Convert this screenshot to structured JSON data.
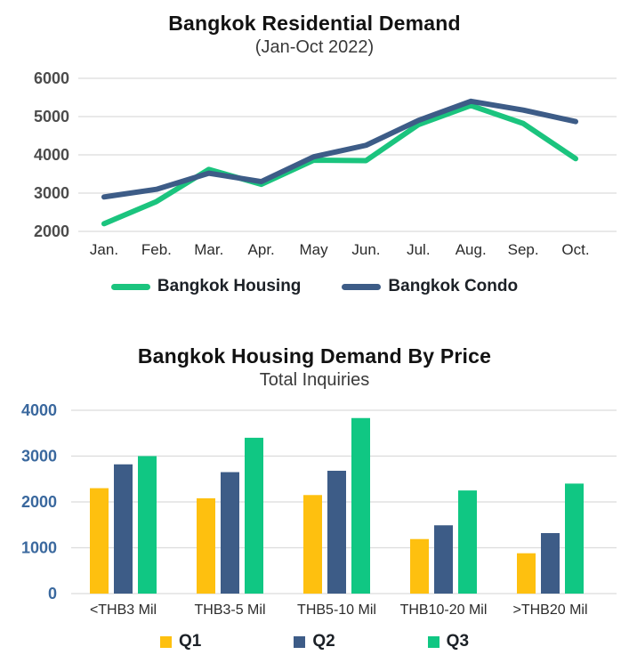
{
  "chart_data": [
    {
      "type": "line",
      "title": "Bangkok Residential Demand",
      "subtitle": "(Jan-Oct 2022)",
      "x": [
        "Jan.",
        "Feb.",
        "Mar.",
        "Apr.",
        "May",
        "Jun.",
        "Jul.",
        "Aug.",
        "Sep.",
        "Oct."
      ],
      "series": [
        {
          "name": "Bangkok Housing",
          "color": "#1BC47E",
          "values": [
            2200,
            2780,
            3620,
            3230,
            3860,
            3850,
            4790,
            5290,
            4820,
            3900
          ]
        },
        {
          "name": "Bangkok Condo",
          "color": "#3D5C87",
          "values": [
            2900,
            3100,
            3520,
            3300,
            3950,
            4250,
            4900,
            5400,
            5170,
            4870
          ]
        }
      ],
      "ylim": [
        2000,
        6000
      ],
      "yticks": [
        2000,
        3000,
        4000,
        5000,
        6000
      ],
      "grid": true,
      "legend_position": "bottom"
    },
    {
      "type": "bar",
      "title": "Bangkok Housing Demand By Price",
      "subtitle": "Total Inquiries",
      "categories": [
        "<THB3 Mil",
        "THB3-5 Mil",
        "THB5-10 Mil",
        "THB10-20 Mil",
        ">THB20 Mil"
      ],
      "series": [
        {
          "name": "Q1",
          "color": "#FEC00F",
          "values": [
            2300,
            2080,
            2150,
            1190,
            880
          ]
        },
        {
          "name": "Q2",
          "color": "#3D5C87",
          "values": [
            2820,
            2650,
            2680,
            1490,
            1320
          ]
        },
        {
          "name": "Q3",
          "color": "#10C783",
          "values": [
            3000,
            3400,
            3830,
            2250,
            2400
          ]
        }
      ],
      "ylim": [
        0,
        4000
      ],
      "yticks": [
        0,
        1000,
        2000,
        3000,
        4000
      ],
      "grid": true,
      "legend_position": "bottom"
    }
  ],
  "colors": {
    "housing_green": "#1BC47E",
    "condo_blue": "#3D5C87",
    "q1_yellow": "#FEC00F",
    "q2_blue": "#3D5C87",
    "q3_green": "#10C783",
    "gridline": "#dcdcdc",
    "axis_text_gray": "#4c4c4c",
    "axis_text_blue": "#3a689e"
  }
}
